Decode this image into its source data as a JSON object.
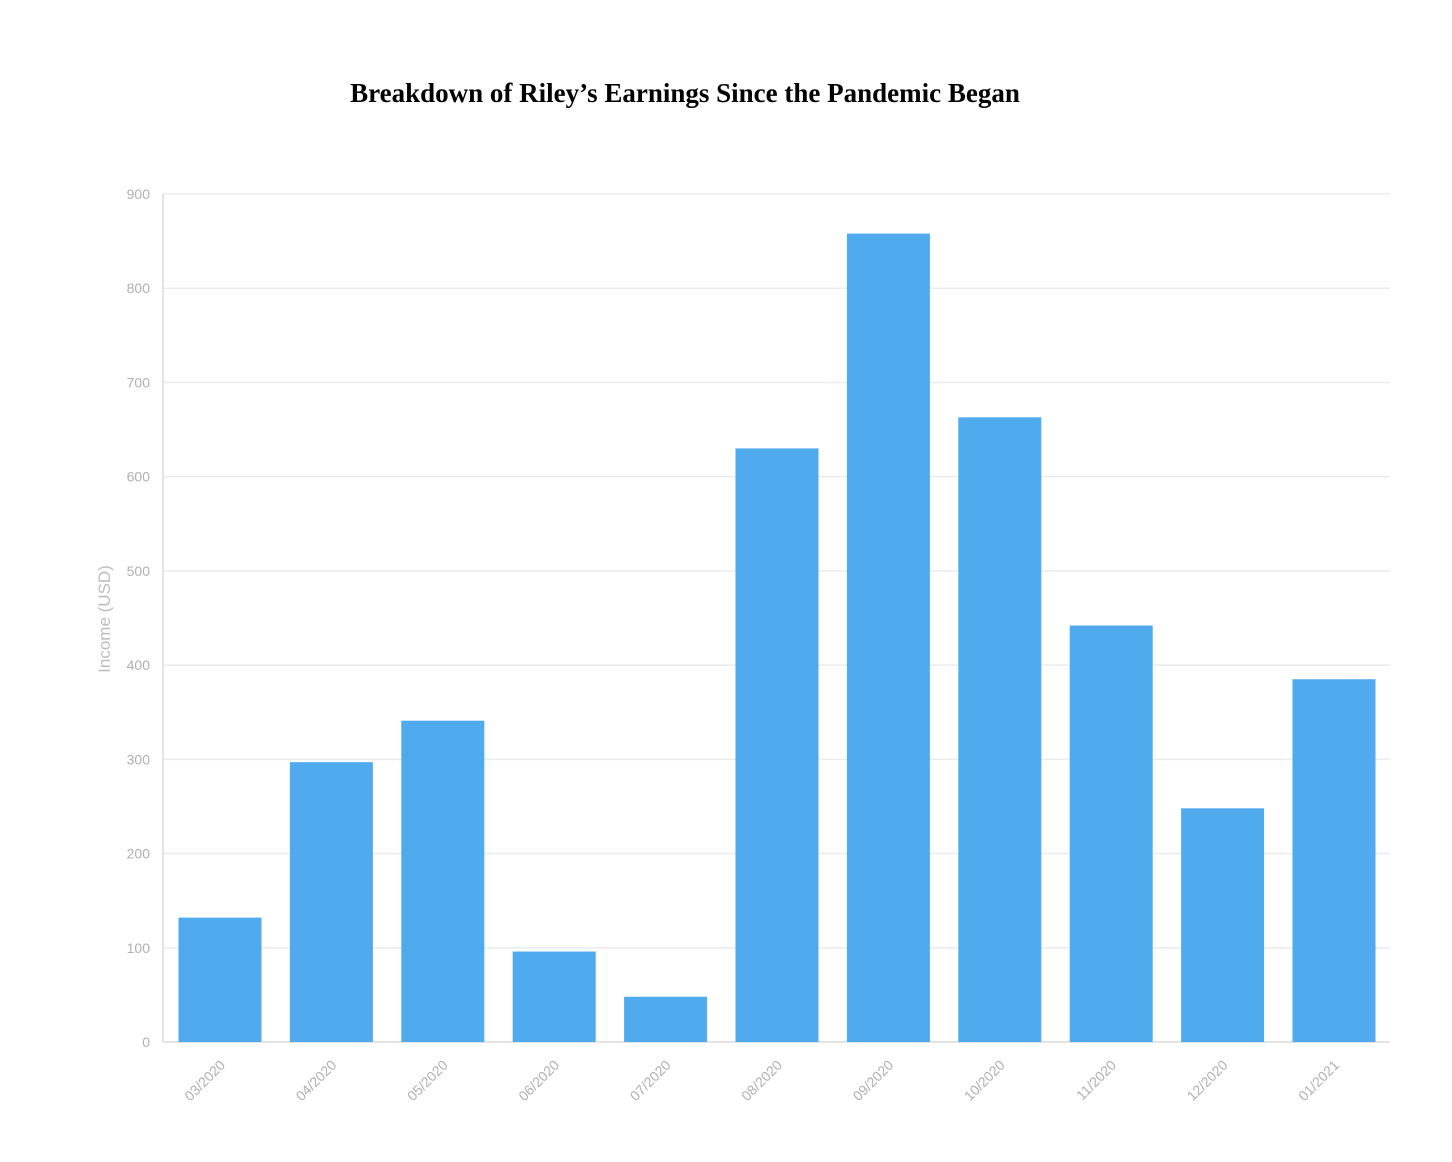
{
  "chart_data": {
    "type": "bar",
    "title": "Breakdown of Riley’s Earnings Since the Pandemic Began",
    "xlabel": "",
    "ylabel": "Income (USD)",
    "categories": [
      "03/2020",
      "04/2020",
      "05/2020",
      "06/2020",
      "07/2020",
      "08/2020",
      "09/2020",
      "10/2020",
      "11/2020",
      "12/2020",
      "01/2021"
    ],
    "values": [
      132,
      297,
      341,
      96,
      48,
      630,
      858,
      663,
      442,
      248,
      385
    ],
    "ylim": [
      0,
      900
    ],
    "yticks": [
      0,
      100,
      200,
      300,
      400,
      500,
      600,
      700,
      800,
      900
    ],
    "grid": true,
    "legend": "none",
    "bar_color": "#4faaee"
  }
}
